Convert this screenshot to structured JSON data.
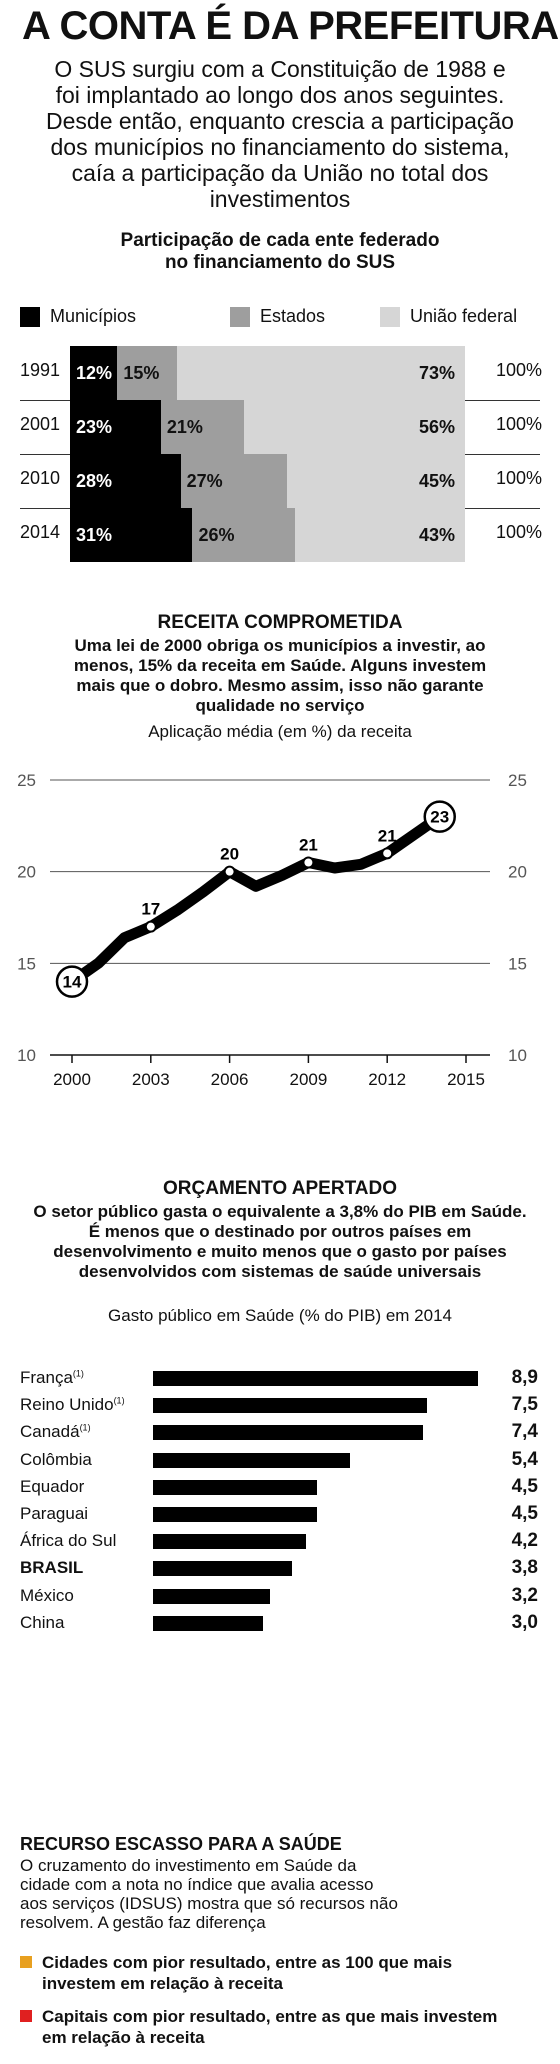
{
  "title": "A CONTA É DA PREFEITURA",
  "intro": "O SUS surgiu com a Constituição de 1988 e foi implantado ao longo dos anos seguintes. Desde então, enquanto crescia a participação dos municípios no financiamento do sistema, caía a participação da União no total dos investimentos",
  "chart_data": [
    {
      "type": "bar",
      "title": "Participação de cada ente federado no financiamento do SUS",
      "legend": [
        "Municípios",
        "Estados",
        "União federal"
      ],
      "colors": [
        "#000000",
        "#9e9e9e",
        "#d6d6d6"
      ],
      "categories": [
        "1991",
        "2001",
        "2010",
        "2014"
      ],
      "series": [
        {
          "name": "Municípios",
          "values": [
            12,
            23,
            28,
            31
          ],
          "labels": [
            "12%",
            "23%",
            "28%",
            "31%"
          ]
        },
        {
          "name": "Estados",
          "values": [
            15,
            21,
            27,
            26
          ],
          "labels": [
            "15%",
            "21%",
            "27%",
            "26%"
          ]
        },
        {
          "name": "União federal",
          "values": [
            73,
            56,
            45,
            43
          ],
          "labels": [
            "73%",
            "56%",
            "45%",
            "43%"
          ]
        }
      ],
      "totals": [
        "100%",
        "100%",
        "100%",
        "100%"
      ],
      "stacked": true
    },
    {
      "type": "line",
      "title": "RECEITA COMPROMETIDA",
      "subtitle": "Uma lei de 2000 obriga os municípios a investir, ao menos, 15% da receita em Saúde. Alguns investem mais que o dobro. Mesmo assim, isso não garante qualidade no serviço",
      "ylabel": "Aplicação média (em %) da receita",
      "x": [
        2000,
        2001,
        2002,
        2003,
        2004,
        2005,
        2006,
        2007,
        2008,
        2009,
        2010,
        2011,
        2012,
        2013,
        2014
      ],
      "y": [
        14.0,
        15.0,
        16.4,
        17.0,
        17.9,
        18.9,
        20.0,
        19.2,
        19.8,
        20.5,
        20.2,
        20.4,
        21.0,
        22.0,
        23.0
      ],
      "annotations": [
        {
          "x": 2000,
          "y": 14.0,
          "label": "14"
        },
        {
          "x": 2003,
          "y": 17.0,
          "label": "17"
        },
        {
          "x": 2006,
          "y": 20.0,
          "label": "20"
        },
        {
          "x": 2009,
          "y": 20.5,
          "label": "21"
        },
        {
          "x": 2012,
          "y": 21.0,
          "label": "21"
        },
        {
          "x": 2014,
          "y": 23.0,
          "label": "23"
        }
      ],
      "xticks": [
        2000,
        2003,
        2006,
        2009,
        2012,
        2015
      ],
      "yticks": [
        10,
        15,
        20,
        25
      ],
      "ylim": [
        10,
        25
      ],
      "xlim": [
        2000,
        2015
      ],
      "grid": "horizontal"
    },
    {
      "type": "bar",
      "title": "ORÇAMENTO APERTADO",
      "subtitle": "O setor público gasta o equivalente a 3,8% do PIB em Saúde. É menos que o destinado por outros países em desenvolvimento e muito menos que o gasto por países desenvolvidos com sistemas de saúde universais",
      "ylabel": "Gasto público em Saúde (% do PIB) em 2014",
      "orientation": "horizontal",
      "categories": [
        "França",
        "Reino Unido",
        "Canadá",
        "Colômbia",
        "Equador",
        "Paraguai",
        "África do Sul",
        "BRASIL",
        "México",
        "China"
      ],
      "footnote_marks": [
        "(1)",
        "(1)",
        "(1)",
        "",
        "",
        "",
        "",
        "",
        "",
        ""
      ],
      "values": [
        8.9,
        7.5,
        7.4,
        5.4,
        4.5,
        4.5,
        4.2,
        3.8,
        3.2,
        3.0
      ],
      "labels": [
        "8,9",
        "7,5",
        "7,4",
        "5,4",
        "4,5",
        "4,5",
        "4,2",
        "3,8",
        "3,2",
        "3,0"
      ],
      "xlim": [
        0,
        8.9
      ]
    }
  ],
  "recurso": {
    "title": "RECURSO ESCASSO PARA A SAÚDE",
    "text": "O cruzamento do investimento em Saúde da cidade com a nota no índice que avalia acesso aos serviços (IDSUS) mostra que só recursos não resolvem. A gestão faz diferença",
    "items": [
      {
        "color": "#e8a020",
        "text": "Cidades com pior resultado, entre as 100 que mais investem em relação à receita"
      },
      {
        "color": "#e02020",
        "text": "Capitais com pior resultado, entre as que mais investem em relação à receita"
      }
    ]
  }
}
